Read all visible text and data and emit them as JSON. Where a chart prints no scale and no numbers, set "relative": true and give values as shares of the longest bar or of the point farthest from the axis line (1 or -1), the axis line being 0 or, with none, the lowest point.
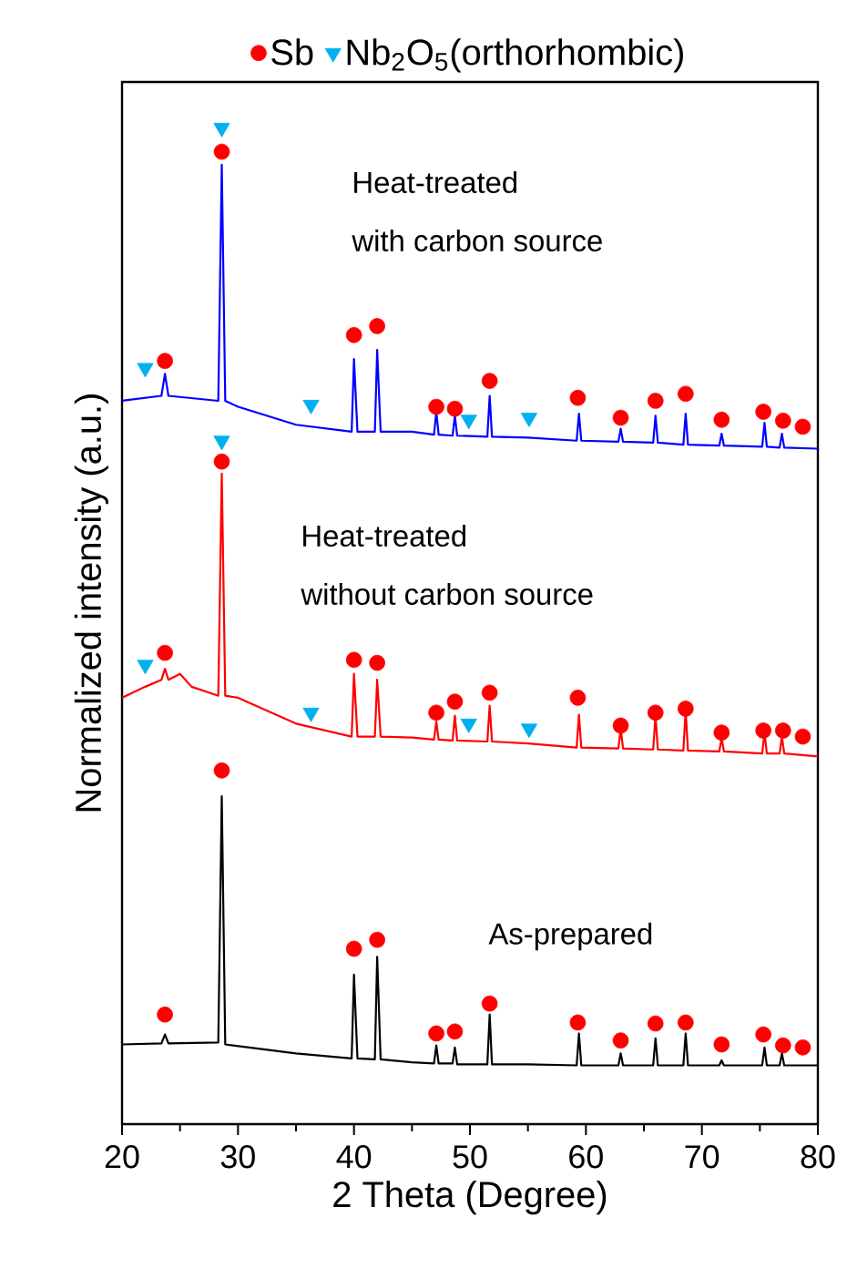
{
  "chart_data": {
    "type": "line",
    "relative": true,
    "xlabel": "2 Theta (Degree)",
    "ylabel": "Normalized intensity (a.u.)",
    "xlim": [
      20,
      80
    ],
    "xticks": [
      20,
      30,
      40,
      50,
      60,
      70,
      80
    ],
    "legend": "top",
    "marker": "none",
    "annotations": [
      "Heat-treated",
      "with carbon source",
      "Heat-treated",
      "without carbon source",
      "As-prepared"
    ],
    "series": [
      {
        "color": "#000000",
        "x": [
          20,
          23.4,
          23.7,
          24,
          28.3,
          28.6,
          28.9,
          35,
          39.8,
          40.0,
          40.3,
          41.8,
          42.0,
          42.3,
          45,
          46.9,
          47.1,
          47.3,
          48.5,
          48.7,
          48.9,
          51.5,
          51.7,
          51.9,
          55,
          59.2,
          59.4,
          59.6,
          62.8,
          63,
          63.2,
          65.8,
          66,
          66.2,
          68.4,
          68.6,
          68.8,
          71.5,
          71.7,
          71.9,
          75.2,
          75.4,
          75.6,
          76.7,
          76.9,
          77.1,
          80
        ],
        "values": [
          0.08,
          0.081,
          0.09,
          0.081,
          0.082,
          0.329,
          0.08,
          0.071,
          0.066,
          0.15,
          0.066,
          0.065,
          0.168,
          0.065,
          0.062,
          0.061,
          0.079,
          0.061,
          0.061,
          0.077,
          0.06,
          0.06,
          0.11,
          0.06,
          0.06,
          0.059,
          0.091,
          0.059,
          0.059,
          0.071,
          0.059,
          0.059,
          0.086,
          0.059,
          0.059,
          0.091,
          0.059,
          0.059,
          0.064,
          0.059,
          0.059,
          0.077,
          0.059,
          0.059,
          0.071,
          0.059,
          0.059
        ]
      },
      {
        "color": "#ff0000",
        "x": [
          20,
          22,
          23.4,
          23.7,
          24,
          25,
          26,
          28.3,
          28.6,
          28.9,
          30,
          35,
          39.8,
          40.0,
          40.3,
          41.8,
          42.0,
          42.3,
          45,
          46.9,
          47.1,
          47.3,
          48.5,
          48.7,
          48.9,
          51.5,
          51.7,
          51.9,
          55,
          59.2,
          59.4,
          59.6,
          62.8,
          63,
          63.2,
          65.8,
          66,
          66.2,
          68.4,
          68.6,
          68.8,
          71.5,
          71.7,
          71.9,
          75.2,
          75.4,
          75.6,
          76.7,
          76.9,
          77.1,
          80
        ],
        "values": [
          0.428,
          0.439,
          0.446,
          0.457,
          0.446,
          0.452,
          0.439,
          0.43,
          0.653,
          0.43,
          0.428,
          0.402,
          0.389,
          0.452,
          0.389,
          0.389,
          0.446,
          0.389,
          0.388,
          0.386,
          0.404,
          0.386,
          0.385,
          0.41,
          0.385,
          0.384,
          0.42,
          0.384,
          0.382,
          0.378,
          0.411,
          0.378,
          0.377,
          0.397,
          0.377,
          0.376,
          0.41,
          0.376,
          0.375,
          0.415,
          0.375,
          0.374,
          0.388,
          0.374,
          0.372,
          0.393,
          0.372,
          0.372,
          0.389,
          0.372,
          0.369
        ]
      },
      {
        "color": "#0000ff",
        "x": [
          20,
          23.4,
          23.7,
          24,
          28.3,
          28.6,
          28.9,
          30,
          35,
          39.8,
          40.0,
          40.3,
          41.8,
          42.0,
          42.3,
          45,
          46.9,
          47.1,
          47.3,
          48.5,
          48.7,
          48.9,
          51.5,
          51.7,
          51.9,
          55,
          59.2,
          59.4,
          59.6,
          62.8,
          63,
          63.2,
          65.8,
          66,
          66.2,
          68.4,
          68.6,
          68.8,
          71.5,
          71.7,
          71.9,
          75.2,
          75.4,
          75.6,
          76.7,
          76.9,
          77.1,
          80
        ],
        "values": [
          0.726,
          0.731,
          0.753,
          0.731,
          0.726,
          0.963,
          0.726,
          0.72,
          0.702,
          0.695,
          0.768,
          0.695,
          0.695,
          0.777,
          0.695,
          0.695,
          0.692,
          0.715,
          0.692,
          0.691,
          0.711,
          0.691,
          0.69,
          0.731,
          0.69,
          0.689,
          0.686,
          0.713,
          0.686,
          0.685,
          0.698,
          0.685,
          0.684,
          0.711,
          0.684,
          0.682,
          0.713,
          0.682,
          0.681,
          0.693,
          0.681,
          0.68,
          0.704,
          0.68,
          0.679,
          0.693,
          0.679,
          0.678
        ]
      },
      {
        "type": "scatter",
        "name": "Sb",
        "color": "#ff0000",
        "marker": "circle",
        "x": [
          23.7,
          28.6,
          40.0,
          42.0,
          47.1,
          48.7,
          51.7,
          59.3,
          63.0,
          66.0,
          68.6,
          71.7,
          75.3,
          77.0,
          78.7,
          23.7,
          28.6,
          40.0,
          42.0,
          47.1,
          48.7,
          51.7,
          59.3,
          63.0,
          66.0,
          68.6,
          71.7,
          75.3,
          77.0,
          78.7,
          23.7,
          28.6,
          40.0,
          42.0,
          47.1,
          48.7,
          51.7,
          59.3,
          63.0,
          66.0,
          68.6,
          71.7,
          75.3,
          77.0,
          78.7
        ],
        "values": [
          0.11,
          0.355,
          0.176,
          0.185,
          0.091,
          0.093,
          0.121,
          0.102,
          0.084,
          0.101,
          0.102,
          0.08,
          0.09,
          0.079,
          0.077,
          0.473,
          0.665,
          0.466,
          0.463,
          0.413,
          0.424,
          0.433,
          0.428,
          0.4,
          0.413,
          0.417,
          0.393,
          0.395,
          0.395,
          0.389,
          0.766,
          0.976,
          0.792,
          0.801,
          0.72,
          0.718,
          0.746,
          0.729,
          0.709,
          0.726,
          0.733,
          0.707,
          0.715,
          0.706,
          0.7
        ]
      },
      {
        "type": "scatter",
        "name": "Nb$_{2}$O$_{5}$(orthorhombic)",
        "color": "#00b0f0",
        "marker": "triangle",
        "x": [
          22.0,
          28.6,
          36.3,
          49.9,
          55.1,
          22.0,
          28.6,
          36.3,
          49.9,
          55.1
        ],
        "values": [
          0.461,
          0.686,
          0.413,
          0.402,
          0.397,
          0.759,
          1.0,
          0.722,
          0.707,
          0.709
        ]
      }
    ]
  }
}
